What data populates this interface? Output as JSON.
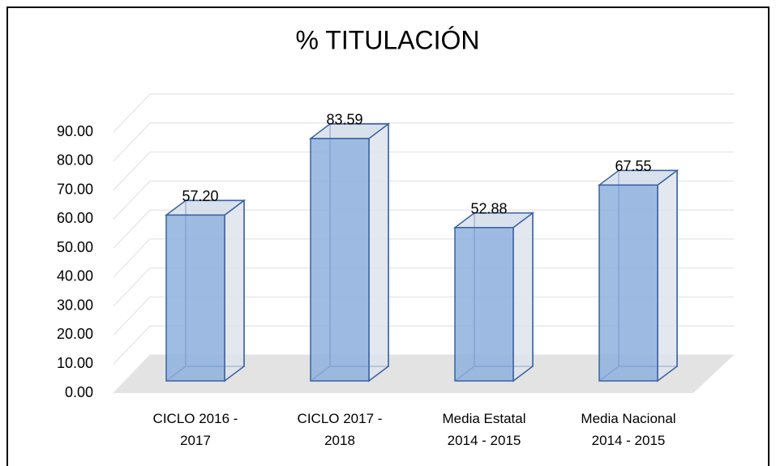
{
  "chart_data": {
    "type": "bar3d",
    "title": "% TITULACIÓN",
    "categories": [
      "CICLO 2016 - 2017",
      "CICLO 2017 - 2018",
      "Media Estatal 2014 - 2015",
      "Media Nacional 2014 - 2015"
    ],
    "values": [
      57.2,
      83.59,
      52.88,
      67.55
    ],
    "value_labels": [
      "57.20",
      "83.59",
      "52.88",
      "67.55"
    ],
    "color": "#8eb0de",
    "ylim": [
      0,
      90
    ],
    "yticks": [
      {
        "value": 0,
        "label": "0.00"
      },
      {
        "value": 10,
        "label": "10.00"
      },
      {
        "value": 20,
        "label": "20.00"
      },
      {
        "value": 30,
        "label": "30.00"
      },
      {
        "value": 40,
        "label": "40.00"
      },
      {
        "value": 50,
        "label": "50.00"
      },
      {
        "value": 60,
        "label": "60.00"
      },
      {
        "value": 70,
        "label": "70.00"
      },
      {
        "value": 80,
        "label": "80.00"
      },
      {
        "value": 90,
        "label": "90.00"
      }
    ],
    "grid": true
  }
}
